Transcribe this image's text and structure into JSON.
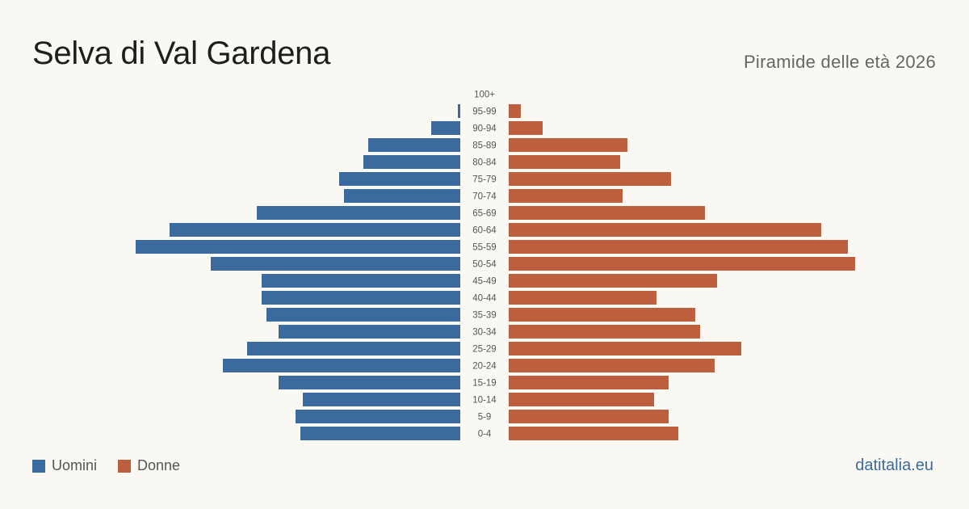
{
  "header": {
    "title": "Selva di Val Gardena",
    "subtitle": "Piramide delle età 2026"
  },
  "footer": {
    "brand": "datitalia.eu"
  },
  "colors": {
    "men": "#3b6a9e",
    "women": "#bd5e3d",
    "age_label": "#555555"
  },
  "chart_data": {
    "type": "bar",
    "orientation": "horizontal-pyramid",
    "categories": [
      "0-4",
      "5-9",
      "10-14",
      "15-19",
      "20-24",
      "25-29",
      "30-34",
      "35-39",
      "40-44",
      "45-49",
      "50-54",
      "55-59",
      "60-64",
      "65-69",
      "70-74",
      "75-79",
      "80-84",
      "85-89",
      "90-94",
      "95-99",
      "100+"
    ],
    "series": [
      {
        "name": "Uomini",
        "values": [
          66,
          68,
          65,
          75,
          98,
          88,
          75,
          80,
          82,
          82,
          103,
          134,
          120,
          84,
          48,
          50,
          40,
          38,
          12,
          1,
          0
        ]
      },
      {
        "name": "Donne",
        "values": [
          70,
          66,
          60,
          66,
          85,
          96,
          79,
          77,
          61,
          86,
          143,
          140,
          129,
          81,
          47,
          67,
          46,
          49,
          14,
          5,
          0
        ]
      }
    ],
    "legend_position": "bottom-left",
    "grid": false
  }
}
